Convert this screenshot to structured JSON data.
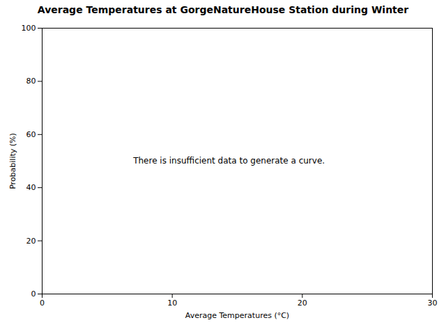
{
  "chart_data": {
    "type": "line",
    "title": "Average Temperatures at GorgeNatureHouse Station during Winter",
    "xlabel": "Average Temperatures (°C)",
    "ylabel": "Probability (%)",
    "xlim": [
      0,
      30
    ],
    "ylim": [
      0,
      100
    ],
    "xticks": [
      0,
      10,
      20,
      30
    ],
    "yticks": [
      0,
      20,
      40,
      60,
      80,
      100
    ],
    "grid": false,
    "color": "#ffffff",
    "annotation": {
      "text": "There is insufficient data to generate a curve.",
      "x": 7,
      "y": 50
    }
  }
}
